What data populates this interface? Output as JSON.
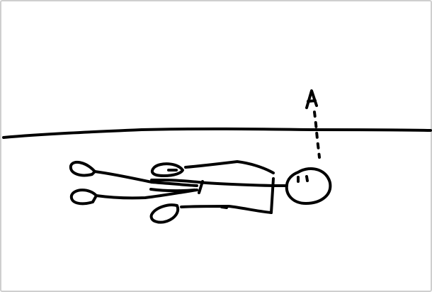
{
  "diagram": {
    "marker_label": "A",
    "colors": {
      "ink": "#000000",
      "frame_border": "#cfcfcf",
      "background": "#ffffff"
    }
  }
}
